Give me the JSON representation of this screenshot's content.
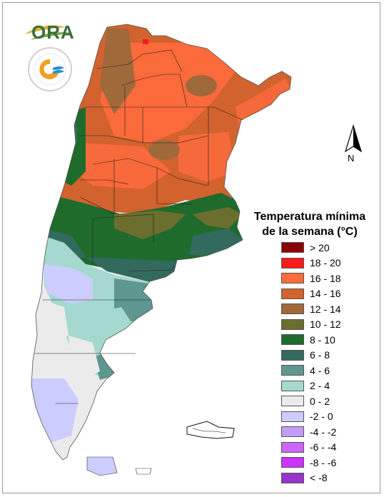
{
  "logos": {
    "ora_text": "ORA",
    "smn_ring_text": "SERVICIO METEOROLÓGICO NACIONAL · ARGENTINA"
  },
  "compass": {
    "label": "N"
  },
  "legend": {
    "title_line1": "Temperatura mínima",
    "title_line2": "de la semana (°C)",
    "items": [
      {
        "label": "> 20",
        "color": "#8b0000"
      },
      {
        "label": "18 - 20",
        "color": "#ff1a1a"
      },
      {
        "label": "16 - 18",
        "color": "#ff6b3d"
      },
      {
        "label": "14 - 16",
        "color": "#d2622e"
      },
      {
        "label": "12 - 14",
        "color": "#a0693a"
      },
      {
        "label": "10 - 12",
        "color": "#6b6e2f"
      },
      {
        "label": "8 - 10",
        "color": "#1f6b2c"
      },
      {
        "label": "6 - 8",
        "color": "#336a5e"
      },
      {
        "label": "4 - 6",
        "color": "#5e9690"
      },
      {
        "label": "2 - 4",
        "color": "#a5d9d0"
      },
      {
        "label": "0 - 2",
        "color": "#ebebeb"
      },
      {
        "label": "-2 - 0",
        "color": "#ccccff"
      },
      {
        "label": "-4 - -2",
        "color": "#c39cf7"
      },
      {
        "label": "-6 - -4",
        "color": "#cc66ff"
      },
      {
        "label": "-8 - -6",
        "color": "#cc33ff"
      },
      {
        "label": "< -8",
        "color": "#9933cc"
      }
    ]
  }
}
